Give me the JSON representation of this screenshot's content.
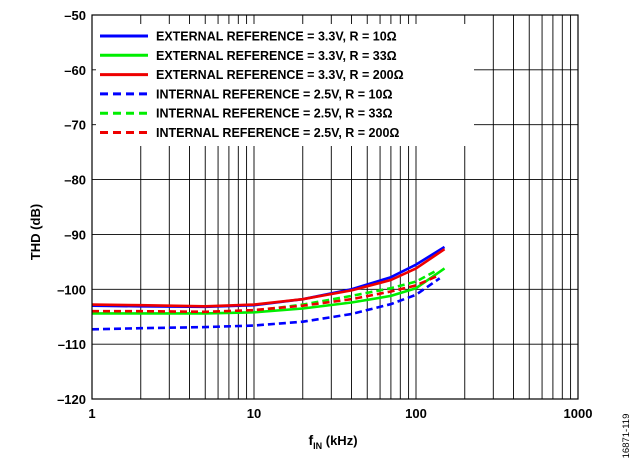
{
  "chart_data": {
    "type": "line",
    "xlabel_main": "f",
    "xlabel_sub": "IN",
    "xlabel_unit": " (kHz)",
    "ylabel": "THD (dB)",
    "x_scale": "log",
    "xlim": [
      1,
      1000
    ],
    "ylim": [
      -120,
      -50
    ],
    "x_ticks": [
      1,
      10,
      100,
      1000
    ],
    "x_tick_labels": [
      "1",
      "10",
      "100",
      "1000"
    ],
    "y_ticks": [
      -50,
      -60,
      -70,
      -80,
      -90,
      -100,
      -110,
      -120
    ],
    "y_tick_labels": [
      "–50",
      "–60",
      "–70",
      "–80",
      "–90",
      "–100",
      "–110",
      "–120"
    ],
    "grid": true,
    "legend_position": "top-left",
    "series": [
      {
        "name": "EXTERNAL REFERENCE = 3.3V, R = 10Ω",
        "color": "#0000ff",
        "dash": "solid",
        "x": [
          1,
          2,
          5,
          10,
          20,
          40,
          70,
          100,
          150
        ],
        "y": [
          -103.0,
          -103.1,
          -103.2,
          -102.9,
          -101.8,
          -100.0,
          -97.8,
          -95.5,
          -92.3
        ]
      },
      {
        "name": "EXTERNAL REFERENCE = 3.3V, R = 33Ω",
        "color": "#00ee00",
        "dash": "solid",
        "x": [
          1,
          2,
          5,
          10,
          20,
          40,
          70,
          100,
          150
        ],
        "y": [
          -104.4,
          -104.4,
          -104.4,
          -104.2,
          -103.5,
          -102.4,
          -101.2,
          -99.8,
          -96.2
        ]
      },
      {
        "name": "EXTERNAL REFERENCE = 3.3V, R = 200Ω",
        "color": "#ee0000",
        "dash": "solid",
        "x": [
          1,
          2,
          5,
          10,
          20,
          40,
          70,
          100,
          150
        ],
        "y": [
          -102.8,
          -102.9,
          -103.1,
          -102.8,
          -101.8,
          -100.2,
          -98.3,
          -96.2,
          -92.7
        ]
      },
      {
        "name": "INTERNAL REFERENCE = 2.5V, R = 10Ω",
        "color": "#0000ff",
        "dash": "dashed",
        "x": [
          1,
          2,
          5,
          10,
          20,
          40,
          70,
          100,
          140
        ],
        "y": [
          -107.3,
          -107.1,
          -106.9,
          -106.6,
          -105.9,
          -104.5,
          -102.7,
          -101.0,
          -98.0
        ]
      },
      {
        "name": "INTERNAL REFERENCE = 2.5V, R = 33Ω",
        "color": "#00ee00",
        "dash": "dashed",
        "x": [
          1,
          2,
          5,
          10,
          20,
          40,
          70,
          100,
          130
        ],
        "y": [
          -104.2,
          -104.2,
          -104.3,
          -103.9,
          -102.8,
          -101.2,
          -99.8,
          -98.6,
          -96.8
        ]
      },
      {
        "name": "INTERNAL REFERENCE = 2.5V, R = 200Ω",
        "color": "#ee0000",
        "dash": "dashed",
        "x": [
          1,
          2,
          5,
          10,
          20,
          40,
          70,
          100,
          140
        ],
        "y": [
          -104.0,
          -104.0,
          -104.1,
          -103.8,
          -103.0,
          -101.8,
          -100.4,
          -99.3,
          -97.4
        ]
      }
    ]
  },
  "figure_id": "16871-119"
}
